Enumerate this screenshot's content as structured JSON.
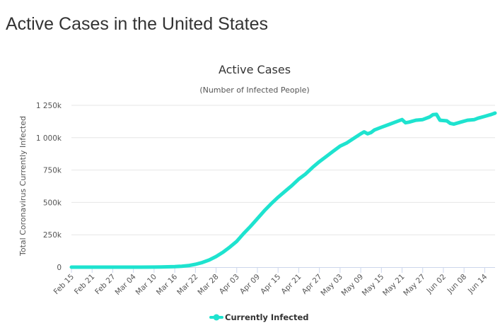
{
  "page": {
    "title": "Active Cases in the United States"
  },
  "colors": {
    "series": "#1ee3cf",
    "grid": "#e6e6e6",
    "axis": "#ccd6eb",
    "text": "#333333"
  },
  "chart_data": {
    "type": "line",
    "title": "Active Cases",
    "subtitle": "(Number of Infected People)",
    "xlabel": "",
    "ylabel": "Total Coronavirus Currently Infected",
    "ylim": [
      0,
      1250000
    ],
    "y_ticks": [
      {
        "value": 0,
        "label": "0"
      },
      {
        "value": 250000,
        "label": "250k"
      },
      {
        "value": 500000,
        "label": "500k"
      },
      {
        "value": 750000,
        "label": "750k"
      },
      {
        "value": 1000000,
        "label": "1 000k"
      },
      {
        "value": 1250000,
        "label": "1 250k"
      }
    ],
    "x_ticks": [
      {
        "day": 0,
        "label": "Feb 15"
      },
      {
        "day": 6,
        "label": "Feb 21"
      },
      {
        "day": 12,
        "label": "Feb 27"
      },
      {
        "day": 18,
        "label": "Mar 04"
      },
      {
        "day": 24,
        "label": "Mar 10"
      },
      {
        "day": 30,
        "label": "Mar 16"
      },
      {
        "day": 36,
        "label": "Mar 22"
      },
      {
        "day": 42,
        "label": "Mar 28"
      },
      {
        "day": 48,
        "label": "Apr 03"
      },
      {
        "day": 54,
        "label": "Apr 09"
      },
      {
        "day": 60,
        "label": "Apr 15"
      },
      {
        "day": 66,
        "label": "Apr 21"
      },
      {
        "day": 72,
        "label": "Apr 27"
      },
      {
        "day": 78,
        "label": "May 03"
      },
      {
        "day": 84,
        "label": "May 09"
      },
      {
        "day": 90,
        "label": "May 15"
      },
      {
        "day": 96,
        "label": "May 21"
      },
      {
        "day": 102,
        "label": "May 27"
      },
      {
        "day": 108,
        "label": "Jun 02"
      },
      {
        "day": 114,
        "label": "Jun 08"
      },
      {
        "day": 120,
        "label": "Jun 14"
      }
    ],
    "x_range_days": [
      0,
      123
    ],
    "series": [
      {
        "name": "Currently Infected",
        "points": [
          [
            0,
            10
          ],
          [
            10,
            20
          ],
          [
            20,
            100
          ],
          [
            24,
            700
          ],
          [
            26,
            1200
          ],
          [
            28,
            2500
          ],
          [
            30,
            4000
          ],
          [
            32,
            7000
          ],
          [
            34,
            12000
          ],
          [
            36,
            22000
          ],
          [
            38,
            36000
          ],
          [
            40,
            55000
          ],
          [
            42,
            82000
          ],
          [
            44,
            115000
          ],
          [
            46,
            155000
          ],
          [
            48,
            200000
          ],
          [
            50,
            260000
          ],
          [
            52,
            315000
          ],
          [
            54,
            375000
          ],
          [
            56,
            435000
          ],
          [
            58,
            490000
          ],
          [
            60,
            540000
          ],
          [
            62,
            585000
          ],
          [
            64,
            630000
          ],
          [
            66,
            680000
          ],
          [
            68,
            720000
          ],
          [
            70,
            770000
          ],
          [
            72,
            815000
          ],
          [
            74,
            855000
          ],
          [
            76,
            895000
          ],
          [
            78,
            935000
          ],
          [
            80,
            960000
          ],
          [
            82,
            995000
          ],
          [
            84,
            1030000
          ],
          [
            85,
            1045000
          ],
          [
            86,
            1030000
          ],
          [
            87,
            1040000
          ],
          [
            88,
            1060000
          ],
          [
            90,
            1080000
          ],
          [
            92,
            1100000
          ],
          [
            94,
            1120000
          ],
          [
            96,
            1140000
          ],
          [
            97,
            1115000
          ],
          [
            98,
            1120000
          ],
          [
            100,
            1135000
          ],
          [
            102,
            1140000
          ],
          [
            104,
            1160000
          ],
          [
            105,
            1178000
          ],
          [
            106,
            1180000
          ],
          [
            107,
            1135000
          ],
          [
            109,
            1130000
          ],
          [
            110,
            1110000
          ],
          [
            111,
            1105000
          ],
          [
            113,
            1120000
          ],
          [
            115,
            1135000
          ],
          [
            117,
            1140000
          ],
          [
            118,
            1150000
          ],
          [
            120,
            1165000
          ],
          [
            122,
            1180000
          ],
          [
            123,
            1190000
          ]
        ]
      }
    ],
    "legend": {
      "position": "bottom-center",
      "label": "Currently Infected"
    }
  }
}
